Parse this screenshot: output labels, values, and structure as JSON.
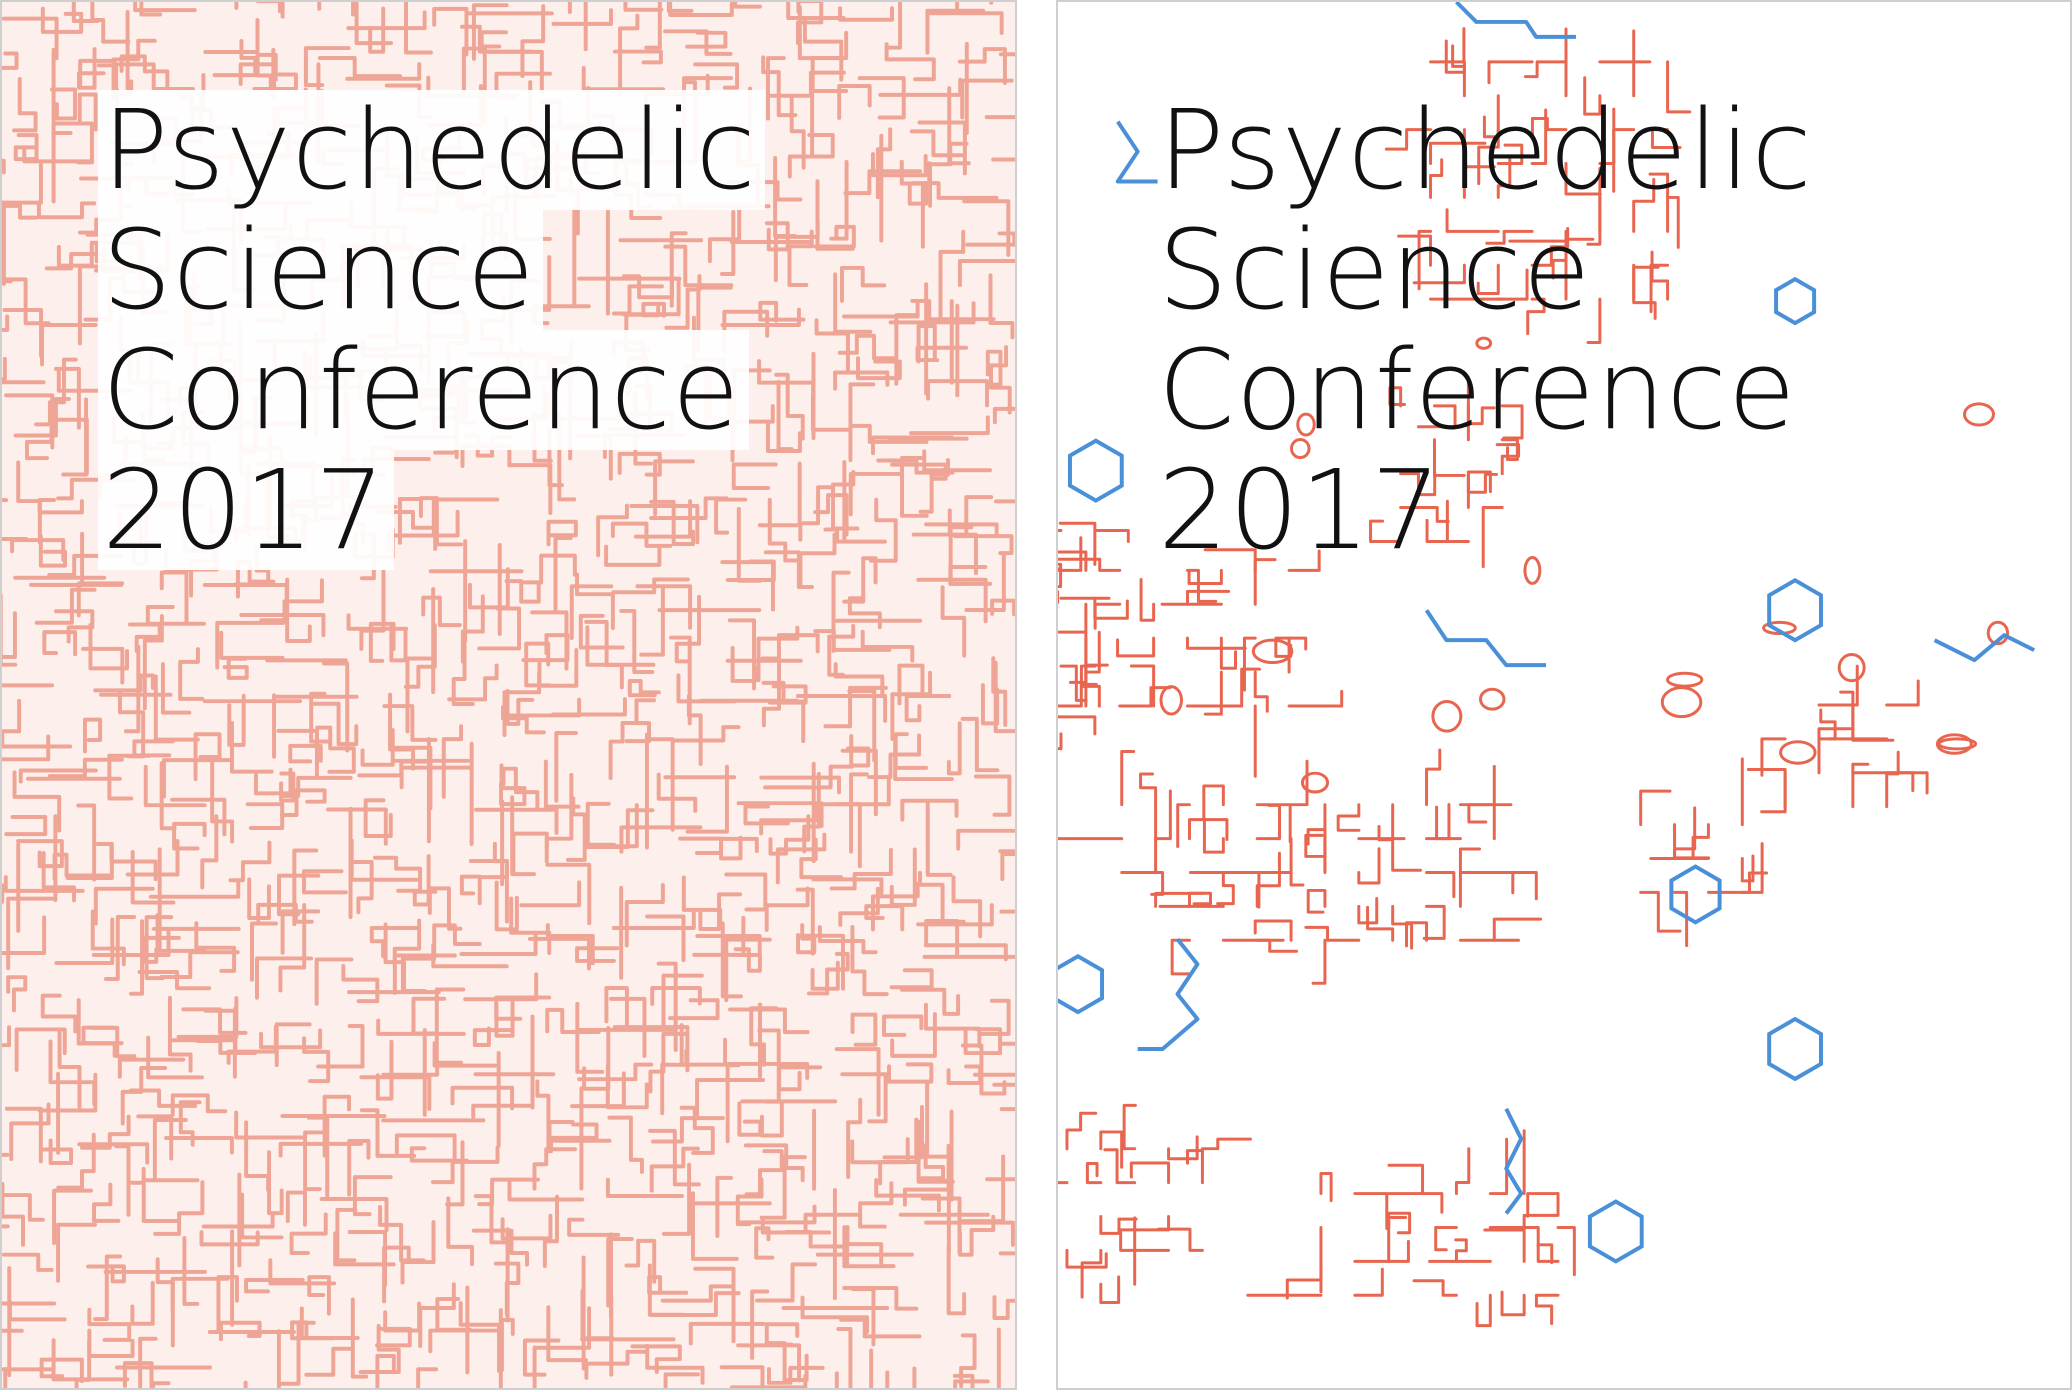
{
  "posters": [
    {
      "title_lines": [
        "Psychedelic",
        "Science",
        "Conference",
        "2017"
      ],
      "pattern_color": "#efa595",
      "background_tint": "#fdf0ec"
    },
    {
      "title_lines": [
        "Psychedelic",
        "Science",
        "Conference",
        "2017"
      ],
      "pattern_color": "#e8664f",
      "molecule_color": "#4a90d9"
    }
  ]
}
